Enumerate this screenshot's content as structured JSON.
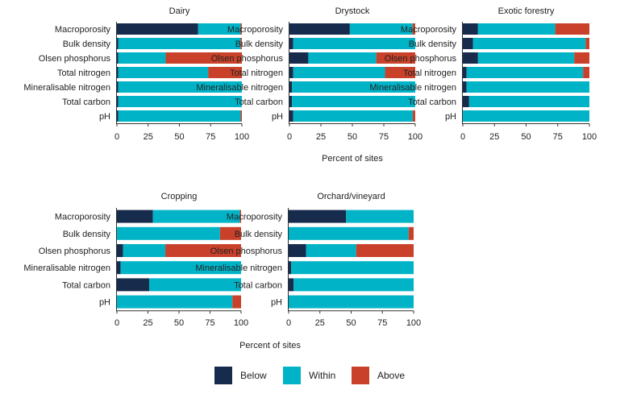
{
  "colors": {
    "Below": "#172b4d",
    "Within": "#00b3c7",
    "Above": "#c9412a"
  },
  "legend": [
    "Below",
    "Within",
    "Above"
  ],
  "chart_data": [
    {
      "type": "bar",
      "orientation": "horizontal",
      "stacked": true,
      "title": "Dairy",
      "xlabel": "Percent of sites",
      "xlim": [
        0,
        100
      ],
      "xticks": [
        "0",
        "25",
        "50",
        "75",
        "100"
      ],
      "categories": [
        "Macroporosity",
        "Bulk density",
        "Olsen phosphorus",
        "Total nitrogen",
        "Mineralisable nitrogen",
        "Total carbon",
        "pH"
      ],
      "series": [
        {
          "name": "Below",
          "values": [
            65,
            1,
            1,
            1,
            1,
            1,
            1
          ]
        },
        {
          "name": "Within",
          "values": [
            34,
            98,
            38,
            72,
            99,
            99,
            98
          ]
        },
        {
          "name": "Above",
          "values": [
            1,
            1,
            61,
            27,
            0,
            0,
            1
          ]
        }
      ]
    },
    {
      "type": "bar",
      "orientation": "horizontal",
      "stacked": true,
      "title": "Drystock",
      "xlabel": "",
      "xlim": [
        0,
        100
      ],
      "xticks": [
        "0",
        "25",
        "50",
        "75",
        "100"
      ],
      "categories": [
        "Macroporosity",
        "Bulk density",
        "Olsen phosphorus",
        "Total nitrogen",
        "Mineralisable nitrogen",
        "Total carbon",
        "pH"
      ],
      "series": [
        {
          "name": "Below",
          "values": [
            48,
            3,
            15,
            3,
            2,
            2,
            3
          ]
        },
        {
          "name": "Within",
          "values": [
            50,
            97,
            54,
            73,
            98,
            98,
            95
          ]
        },
        {
          "name": "Above",
          "values": [
            2,
            0,
            31,
            24,
            0,
            0,
            2
          ]
        }
      ]
    },
    {
      "type": "bar",
      "orientation": "horizontal",
      "stacked": true,
      "title": "Exotic forestry",
      "xlabel": "",
      "xlim": [
        0,
        100
      ],
      "xticks": [
        "0",
        "25",
        "50",
        "75",
        "100"
      ],
      "categories": [
        "Macroporosity",
        "Bulk density",
        "Olsen phosphorus",
        "Total nitrogen",
        "Mineralisable nitrogen",
        "Total carbon",
        "pH"
      ],
      "series": [
        {
          "name": "Below",
          "values": [
            12,
            8,
            12,
            3,
            3,
            5,
            0
          ]
        },
        {
          "name": "Within",
          "values": [
            61,
            89,
            76,
            92,
            97,
            95,
            100
          ]
        },
        {
          "name": "Above",
          "values": [
            27,
            3,
            12,
            5,
            0,
            0,
            0
          ]
        }
      ]
    },
    {
      "type": "bar",
      "orientation": "horizontal",
      "stacked": true,
      "title": "Cropping",
      "xlabel": "Percent of sites",
      "xlim": [
        0,
        100
      ],
      "xticks": [
        "0",
        "25",
        "50",
        "75",
        "100"
      ],
      "categories": [
        "Macroporosity",
        "Bulk density",
        "Olsen phosphorus",
        "Mineralisable nitrogen",
        "Total carbon",
        "pH"
      ],
      "series": [
        {
          "name": "Below",
          "values": [
            29,
            0,
            5,
            3,
            26,
            0
          ]
        },
        {
          "name": "Within",
          "values": [
            70,
            83,
            34,
            97,
            74,
            93
          ]
        },
        {
          "name": "Above",
          "values": [
            1,
            17,
            61,
            0,
            0,
            7
          ]
        }
      ]
    },
    {
      "type": "bar",
      "orientation": "horizontal",
      "stacked": true,
      "title": "Orchard/vineyard",
      "xlabel": "",
      "xlim": [
        0,
        100
      ],
      "xticks": [
        "0",
        "25",
        "50",
        "75",
        "100"
      ],
      "categories": [
        "Macroporosity",
        "Bulk density",
        "Olsen phosphorus",
        "Mineralisable nitrogen",
        "Total carbon",
        "pH"
      ],
      "series": [
        {
          "name": "Below",
          "values": [
            46,
            0,
            14,
            2,
            4,
            0
          ]
        },
        {
          "name": "Within",
          "values": [
            54,
            96,
            40,
            98,
            96,
            100
          ]
        },
        {
          "name": "Above",
          "values": [
            0,
            4,
            46,
            0,
            0,
            0
          ]
        }
      ]
    }
  ]
}
